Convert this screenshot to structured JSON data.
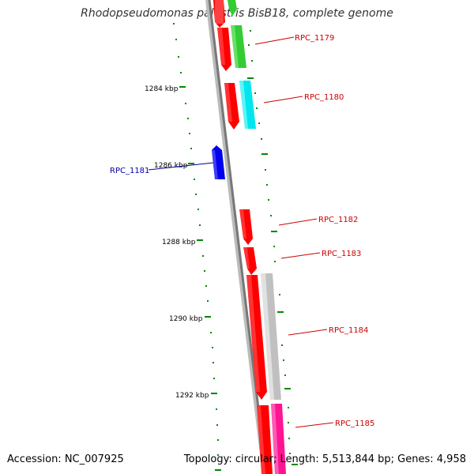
{
  "title": "Rhodopseudomonas palustris BisB18, complete genome",
  "accession": "Accession: NC_007925",
  "summary": "Topology: circular; Length: 5,513,844 bp; Genes: 4,958",
  "ticks": [
    "1284 kbp",
    "1286 kbp",
    "1288 kbp",
    "1290 kbp",
    "1292 kbp"
  ],
  "genes": [
    {
      "label": "RPC_1179",
      "color": "#cc0000"
    },
    {
      "label": "RPC_1180",
      "color": "#cc0000"
    },
    {
      "label": "RPC_1181",
      "color": "#0000aa"
    },
    {
      "label": "RPC_1182",
      "color": "#cc0000"
    },
    {
      "label": "RPC_1183",
      "color": "#cc0000"
    },
    {
      "label": "RPC_1184",
      "color": "#cc0000"
    },
    {
      "label": "RPC_1185",
      "color": "#cc0000"
    }
  ],
  "colors": {
    "backbone": "#888888",
    "tick": "#006600",
    "dot": "#00aa00",
    "red": "#ff0000",
    "green": "#33cc33",
    "cyan": "#00e5ee",
    "blue": "#0000ff",
    "gray": "#c0c0c0",
    "magenta": "#ff1493"
  }
}
